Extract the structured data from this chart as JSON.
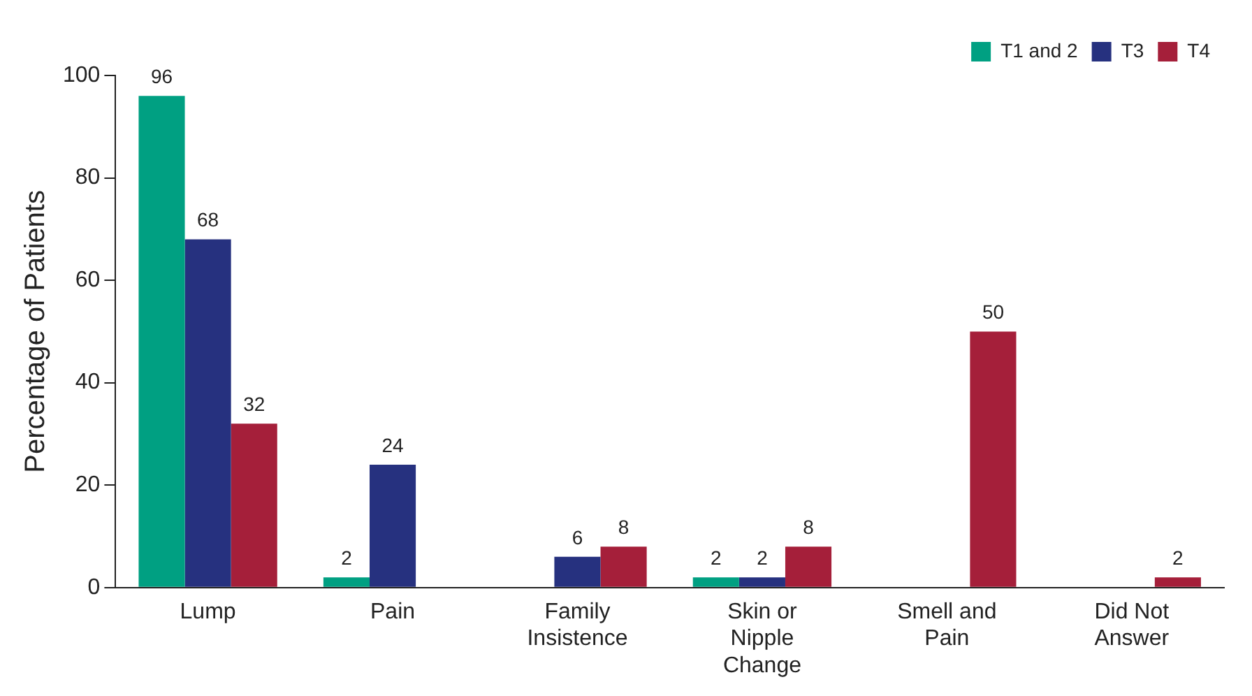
{
  "chart_data": {
    "type": "bar",
    "ylabel": "Percentage of Patients",
    "categories": [
      "Lump",
      "Pain",
      "Family Insistence",
      "Skin or Nipple Change",
      "Smell and Pain",
      "Did Not Answer"
    ],
    "series": [
      {
        "name": "T1 and 2",
        "color": "#00a082",
        "values": [
          96,
          2,
          null,
          2,
          null,
          null
        ]
      },
      {
        "name": "T3",
        "color": "#26317f",
        "values": [
          68,
          24,
          6,
          2,
          null,
          null
        ]
      },
      {
        "name": "T4",
        "color": "#a51f3a",
        "values": [
          32,
          null,
          8,
          8,
          50,
          2
        ]
      }
    ],
    "ylim": [
      0,
      100
    ],
    "yticks": [
      0,
      20,
      40,
      60,
      80,
      100
    ],
    "grid": false,
    "legend": "top right",
    "data_labels": true
  }
}
